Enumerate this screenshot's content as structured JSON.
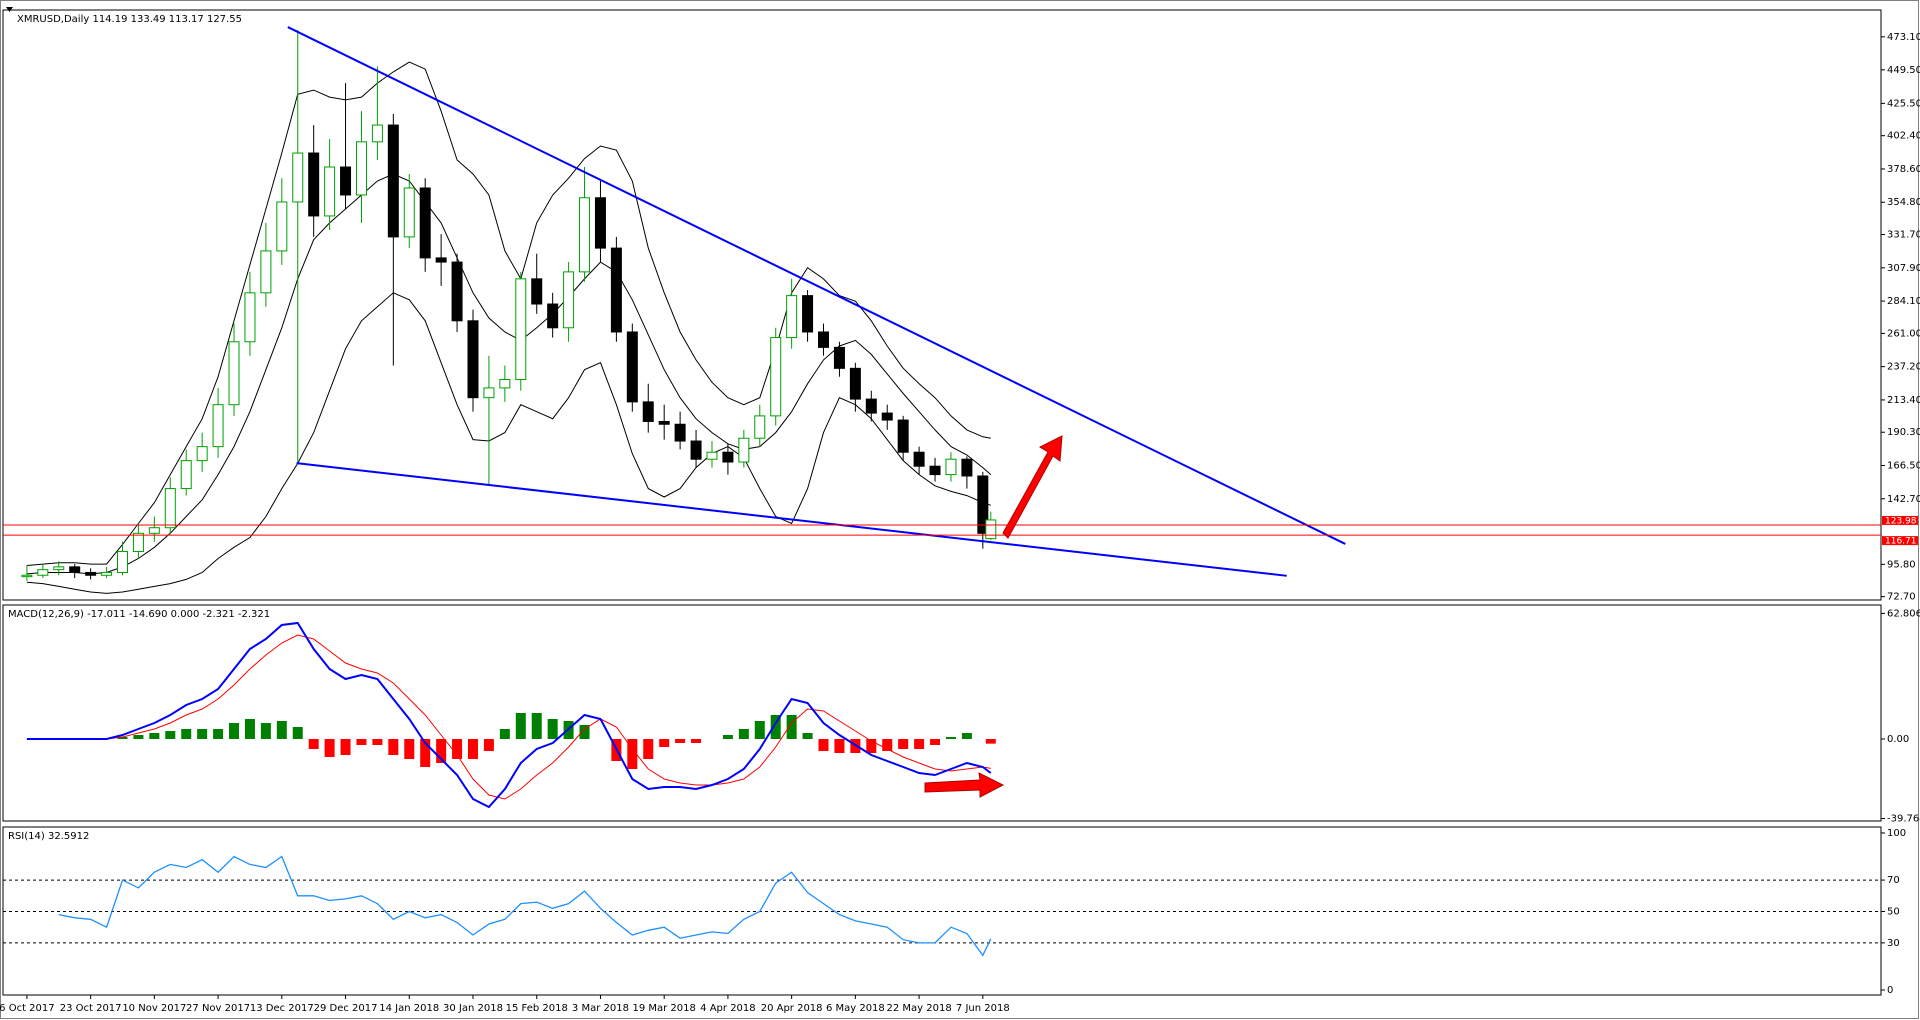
{
  "chart_data": [
    {
      "type": "candlestick",
      "title": "XMRUSD,Daily  114.19 133.49 113.17 127.55",
      "x": [
        0,
        4,
        8,
        12,
        16,
        20,
        24,
        28,
        32,
        36,
        40,
        44,
        48,
        52,
        56,
        60,
        64,
        68,
        72,
        76,
        80,
        84,
        88,
        92,
        96,
        100,
        104,
        108,
        112,
        116,
        120,
        124,
        128,
        132,
        136,
        140,
        144,
        148,
        152,
        156,
        160,
        164,
        168,
        172,
        176,
        180,
        184,
        188,
        192,
        196,
        200,
        204,
        208,
        212,
        216,
        220,
        224,
        228,
        232,
        236,
        240,
        242
      ],
      "open": [
        87,
        88,
        92,
        94,
        90,
        88,
        90,
        105,
        118,
        122,
        150,
        170,
        180,
        210,
        255,
        290,
        320,
        355,
        390,
        345,
        380,
        360,
        398,
        410,
        330,
        365,
        315,
        312,
        270,
        215,
        222,
        228,
        300,
        282,
        265,
        305,
        358,
        322,
        262,
        212,
        198,
        196,
        184,
        171,
        176,
        169,
        186,
        202,
        258,
        288,
        262,
        251,
        236,
        214,
        204,
        199,
        176,
        166,
        160,
        171,
        159,
        114.19
      ],
      "high": [
        95,
        96,
        98,
        96,
        93,
        94,
        112,
        125,
        130,
        158,
        178,
        190,
        222,
        268,
        305,
        340,
        372,
        478,
        410,
        400,
        440,
        420,
        452,
        418,
        375,
        372,
        332,
        318,
        278,
        245,
        238,
        305,
        318,
        290,
        312,
        380,
        370,
        330,
        268,
        225,
        210,
        205,
        192,
        184,
        182,
        192,
        210,
        265,
        300,
        292,
        268,
        255,
        240,
        220,
        210,
        202,
        180,
        172,
        176,
        173,
        162,
        133.49
      ],
      "low": [
        84,
        86,
        88,
        86,
        85,
        86,
        88,
        100,
        112,
        118,
        145,
        162,
        172,
        202,
        245,
        280,
        310,
        168,
        330,
        335,
        350,
        340,
        385,
        238,
        322,
        305,
        295,
        262,
        205,
        153,
        212,
        220,
        275,
        258,
        255,
        298,
        312,
        255,
        205,
        190,
        185,
        178,
        165,
        165,
        160,
        165,
        180,
        195,
        250,
        255,
        245,
        230,
        205,
        198,
        192,
        170,
        160,
        155,
        155,
        150,
        107,
        113.17
      ],
      "close": [
        88,
        92,
        94,
        90,
        88,
        90,
        105,
        118,
        122,
        150,
        170,
        180,
        210,
        255,
        290,
        320,
        355,
        390,
        345,
        380,
        360,
        398,
        410,
        330,
        365,
        315,
        312,
        270,
        215,
        222,
        228,
        300,
        282,
        265,
        305,
        358,
        322,
        262,
        212,
        198,
        196,
        184,
        171,
        176,
        169,
        186,
        202,
        258,
        288,
        262,
        251,
        236,
        214,
        204,
        199,
        176,
        166,
        160,
        171,
        159,
        118,
        127.55
      ],
      "up_color": "#00a000",
      "down_color": "#000000",
      "bands": {
        "color": "#000000",
        "upper": [
          95,
          96,
          97,
          97,
          96,
          96,
          110,
          125,
          140,
          160,
          180,
          200,
          230,
          270,
          310,
          350,
          390,
          432,
          435,
          430,
          428,
          430,
          440,
          448,
          455,
          450,
          420,
          385,
          375,
          360,
          320,
          300,
          340,
          360,
          372,
          386,
          395,
          392,
          370,
          322,
          290,
          262,
          242,
          226,
          215,
          210,
          215,
          250,
          290,
          308,
          300,
          288,
          284,
          270,
          252,
          236,
          225,
          215,
          202,
          192,
          187,
          186
        ],
        "middle": [
          89,
          90,
          90,
          90,
          89,
          90,
          94,
          100,
          108,
          118,
          130,
          142,
          160,
          180,
          205,
          235,
          265,
          300,
          328,
          340,
          350,
          360,
          370,
          375,
          370,
          355,
          340,
          315,
          290,
          272,
          262,
          256,
          265,
          275,
          287,
          300,
          312,
          305,
          285,
          260,
          235,
          215,
          200,
          190,
          182,
          178,
          180,
          190,
          205,
          225,
          242,
          252,
          256,
          246,
          232,
          218,
          205,
          192,
          180,
          174,
          165,
          160
        ],
        "lower": [
          83,
          82,
          80,
          78,
          76,
          75,
          76,
          78,
          80,
          82,
          85,
          90,
          100,
          108,
          115,
          130,
          150,
          168,
          190,
          220,
          250,
          270,
          280,
          290,
          285,
          270,
          240,
          210,
          185,
          184,
          190,
          210,
          205,
          200,
          215,
          235,
          240,
          210,
          175,
          150,
          144,
          150,
          165,
          175,
          180,
          172,
          150,
          130,
          125,
          150,
          190,
          215,
          210,
          200,
          185,
          170,
          160,
          152,
          148,
          145,
          140,
          138
        ]
      },
      "trendlines": [
        {
          "color": "#0000ff",
          "x": [
            65.5,
            331
          ],
          "y": [
            480.1,
            110.4
          ]
        },
        {
          "color": "#0000ff",
          "x": [
            67.7,
            316.3
          ],
          "y": [
            168.2,
            87.6
          ]
        }
      ],
      "hlines": [
        {
          "value": 123.98,
          "color": "#ff0000"
        },
        {
          "value": 116.71,
          "color": "#ff0000"
        }
      ],
      "xlim": [
        -6,
        465.5
      ],
      "ylim": [
        70.3,
        492.3
      ],
      "yticks": [
        {
          "value": 473.1,
          "label": "473.10"
        },
        {
          "value": 449.5,
          "label": "449.50"
        },
        {
          "value": 425.5,
          "label": "425.50"
        },
        {
          "value": 402.4,
          "label": "402.40"
        },
        {
          "value": 378.6,
          "label": "378.60"
        },
        {
          "value": 354.8,
          "label": "354.80"
        },
        {
          "value": 331.7,
          "label": "331.70"
        },
        {
          "value": 307.9,
          "label": "307.90"
        },
        {
          "value": 284.1,
          "label": "284.10"
        },
        {
          "value": 261,
          "label": "261.00"
        },
        {
          "value": 237.2,
          "label": "237.20"
        },
        {
          "value": 213.4,
          "label": "213.40"
        },
        {
          "value": 190.3,
          "label": "190.30"
        },
        {
          "value": 166.5,
          "label": "166.50"
        },
        {
          "value": 142.7,
          "label": "142.70"
        },
        {
          "value": 95.8,
          "label": "95.80"
        },
        {
          "value": 72.7,
          "label": "72.70"
        }
      ]
    },
    {
      "type": "macd",
      "title": "MACD(12,26,9) -17.011 -14.690 0.000 -2.321 -2.321",
      "x": [
        0,
        4,
        8,
        12,
        16,
        20,
        24,
        28,
        32,
        36,
        40,
        44,
        48,
        52,
        56,
        60,
        64,
        68,
        72,
        76,
        80,
        84,
        88,
        92,
        96,
        100,
        104,
        108,
        112,
        116,
        120,
        124,
        128,
        132,
        136,
        140,
        144,
        148,
        152,
        156,
        160,
        164,
        168,
        172,
        176,
        180,
        184,
        188,
        192,
        196,
        200,
        204,
        208,
        212,
        216,
        220,
        224,
        228,
        232,
        236,
        240,
        242
      ],
      "macd": {
        "color": "#0000ff",
        "values": [
          0,
          0,
          0,
          0,
          0,
          0,
          2,
          5,
          8,
          12,
          17,
          20,
          25,
          35,
          45,
          50,
          57,
          58,
          45,
          35,
          30,
          32,
          30,
          20,
          10,
          -2,
          -10,
          -18,
          -30,
          -34,
          -25,
          -12,
          -5,
          -2,
          5,
          12,
          10,
          -5,
          -20,
          -25,
          -24,
          -24,
          -25,
          -23,
          -20,
          -15,
          -5,
          8,
          20,
          18,
          8,
          2,
          -3,
          -8,
          -11,
          -14,
          -17,
          -18,
          -15,
          -12,
          -14,
          -17.011
        ]
      },
      "signal": {
        "color": "#ff0000",
        "values": [
          0,
          0,
          0,
          0,
          0,
          0,
          1,
          3,
          5,
          8,
          12,
          15,
          20,
          27,
          35,
          42,
          48,
          52,
          50,
          44,
          38,
          35,
          33,
          28,
          20,
          12,
          2,
          -8,
          -20,
          -28,
          -30,
          -25,
          -18,
          -12,
          -4,
          5,
          10,
          6,
          -5,
          -15,
          -20,
          -22,
          -23,
          -23,
          -22,
          -20,
          -14,
          -4,
          8,
          15,
          14,
          9,
          4,
          -1,
          -5,
          -9,
          -12,
          -15,
          -16,
          -15,
          -14,
          -14.69
        ]
      },
      "histogram": {
        "up_color": "#008000",
        "down_color": "#ff0000",
        "values": [
          0,
          0,
          0,
          0,
          0,
          0,
          1,
          2,
          3,
          4,
          5,
          5,
          5,
          8,
          10,
          8,
          9,
          6,
          -5,
          -9,
          -8,
          -3,
          -3,
          -8,
          -10,
          -14,
          -12,
          -10,
          -10,
          -6,
          5,
          13,
          13,
          10,
          9,
          7,
          0,
          -11,
          -15,
          -10,
          -4,
          -2,
          -2,
          0,
          2,
          5,
          9,
          12,
          12,
          3,
          -6,
          -7,
          -7,
          -7,
          -6,
          -5,
          -5,
          -3,
          1,
          3,
          0,
          -2.321
        ]
      },
      "xlim": [
        -6,
        465.5
      ],
      "ylim": [
        -41,
        67
      ],
      "yticks": [
        62.806,
        {
          "value": 0,
          "label": "0.00"
        },
        -39.764
      ]
    },
    {
      "type": "rsi",
      "title": "RSI(14) 32.5912",
      "x": [
        0,
        4,
        8,
        12,
        16,
        20,
        24,
        28,
        32,
        36,
        40,
        44,
        48,
        52,
        56,
        60,
        64,
        68,
        72,
        76,
        80,
        84,
        88,
        92,
        96,
        100,
        104,
        108,
        112,
        116,
        120,
        124,
        128,
        132,
        136,
        140,
        144,
        148,
        152,
        156,
        160,
        164,
        168,
        172,
        176,
        180,
        184,
        188,
        192,
        196,
        200,
        204,
        208,
        212,
        216,
        220,
        224,
        228,
        232,
        236,
        240,
        242
      ],
      "values": [
        null,
        null,
        48,
        46,
        45,
        40,
        70,
        65,
        75,
        80,
        78,
        83,
        75,
        85,
        80,
        78,
        85,
        60,
        60,
        57,
        58,
        60,
        55,
        45,
        50,
        46,
        48,
        43,
        35,
        42,
        45,
        55,
        56,
        52,
        55,
        63,
        52,
        43,
        35,
        38,
        40,
        33,
        35,
        37,
        36,
        45,
        50,
        68,
        75,
        62,
        55,
        48,
        44,
        42,
        40,
        32,
        30,
        30,
        40,
        36,
        22,
        32.5912
      ],
      "color": "#1e90ff",
      "levels": [
        70,
        50,
        30
      ],
      "xlim": [
        -6,
        465.5
      ],
      "ylim": [
        -3.2,
        103.8
      ],
      "yticks": [
        0,
        30,
        50,
        70,
        100
      ],
      "xticks": [
        {
          "value": 0,
          "label": "6 Oct 2017"
        },
        {
          "value": 16,
          "label": "23 Oct 2017"
        },
        {
          "value": 32,
          "label": "10 Nov 2017"
        },
        {
          "value": 48,
          "label": "27 Nov 2017"
        },
        {
          "value": 64,
          "label": "13 Dec 2017"
        },
        {
          "value": 80,
          "label": "29 Dec 2017"
        },
        {
          "value": 96,
          "label": "14 Jan 2018"
        },
        {
          "value": 112,
          "label": "30 Jan 2018"
        },
        {
          "value": 128,
          "label": "15 Feb 2018"
        },
        {
          "value": 144,
          "label": "3 Mar 2018"
        },
        {
          "value": 160,
          "label": "19 Mar 2018"
        },
        {
          "value": 176,
          "label": "4 Apr 2018"
        },
        {
          "value": 192,
          "label": "20 Apr 2018"
        },
        {
          "value": 208,
          "label": "6 May 2018"
        },
        {
          "value": 224,
          "label": "22 May 2018"
        },
        {
          "value": 240,
          "label": "7 Jun 2018"
        }
      ]
    }
  ]
}
